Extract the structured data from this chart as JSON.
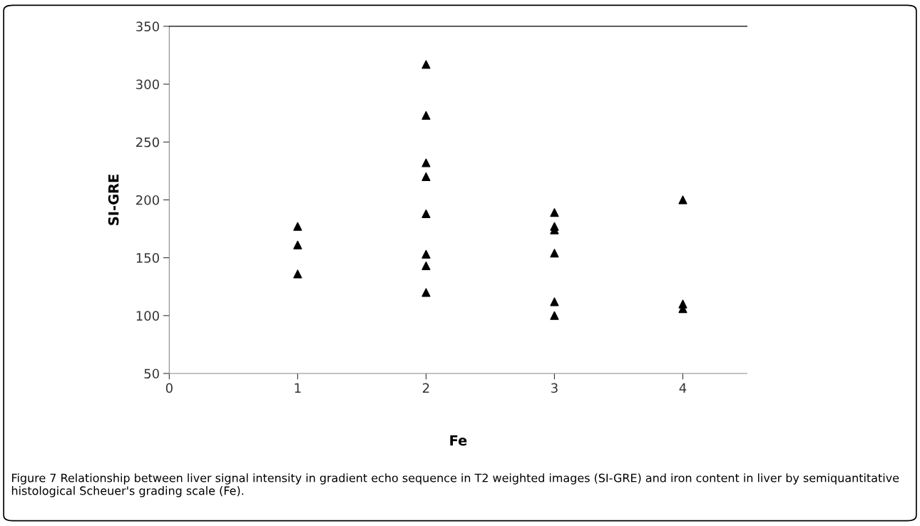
{
  "chart_data": {
    "type": "scatter",
    "xlabel": "Fe",
    "ylabel": "SI-GRE",
    "x": [
      1,
      1,
      1,
      2,
      2,
      2,
      2,
      2,
      2,
      2,
      2,
      3,
      3,
      3,
      3,
      3,
      3,
      4,
      4,
      4
    ],
    "values": [
      177,
      161,
      136,
      317,
      273,
      232,
      220,
      188,
      153,
      143,
      120,
      189,
      177,
      174,
      154,
      112,
      100,
      200,
      110,
      106
    ],
    "color": "#000000",
    "marker": "triangle",
    "xlim": [
      0,
      4.5
    ],
    "xticks": [
      0,
      1,
      2,
      3,
      4
    ],
    "ylim": [
      50,
      350
    ],
    "yticks": [
      50,
      100,
      150,
      200,
      250,
      300,
      350
    ],
    "grid": false,
    "legend": false,
    "annotations": [
      "Figure 7 Relationship between liver signal intensity in gradient echo sequence in T2 weighted images (SI-GRE) and iron content in liver by semiquantitative histological Scheuer's grading scale (Fe)."
    ]
  }
}
